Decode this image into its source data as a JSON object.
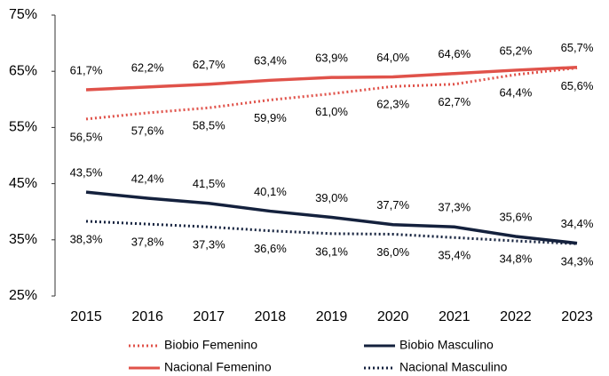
{
  "chart_data": {
    "type": "line",
    "categories": [
      "2015",
      "2016",
      "2017",
      "2018",
      "2019",
      "2020",
      "2021",
      "2022",
      "2023"
    ],
    "series": [
      {
        "name": "Biobio Femenino",
        "color": "#e0524a",
        "style": "dotted",
        "values": [
          56.5,
          57.6,
          58.5,
          59.9,
          61.0,
          62.3,
          62.7,
          64.4,
          65.6
        ],
        "value_labels": [
          "56,5%",
          "57,6%",
          "58,5%",
          "59,9%",
          "61,0%",
          "62,3%",
          "62,7%",
          "64,4%",
          "65,6%"
        ]
      },
      {
        "name": "Biobio Masculino",
        "color": "#14213d",
        "style": "solid",
        "values": [
          43.5,
          42.4,
          41.5,
          40.1,
          39.0,
          37.7,
          37.3,
          35.6,
          34.4
        ],
        "value_labels": [
          "43,5%",
          "42,4%",
          "41,5%",
          "40,1%",
          "39,0%",
          "37,7%",
          "37,3%",
          "35,6%",
          "34,4%"
        ]
      },
      {
        "name": "Nacional Femenino",
        "color": "#e0524a",
        "style": "solid",
        "values": [
          61.7,
          62.2,
          62.7,
          63.4,
          63.9,
          64.0,
          64.6,
          65.2,
          65.7
        ],
        "value_labels": [
          "61,7%",
          "62,2%",
          "62,7%",
          "63,4%",
          "63,9%",
          "64,0%",
          "64,6%",
          "65,2%",
          "65,7%"
        ]
      },
      {
        "name": "Nacional Masculino",
        "color": "#14213d",
        "style": "dotted",
        "values": [
          38.3,
          37.8,
          37.3,
          36.6,
          36.1,
          36.0,
          35.4,
          34.8,
          34.3
        ],
        "value_labels": [
          "38,3%",
          "37,8%",
          "37,3%",
          "36,6%",
          "36,1%",
          "36,0%",
          "35,4%",
          "34,8%",
          "34,3%"
        ]
      }
    ],
    "ylim": [
      25,
      75
    ],
    "yticks": [
      {
        "value": 25,
        "label": "25%"
      },
      {
        "value": 35,
        "label": "35%"
      },
      {
        "value": 45,
        "label": "45%"
      },
      {
        "value": 55,
        "label": "55%"
      },
      {
        "value": 65,
        "label": "65%"
      },
      {
        "value": 75,
        "label": "75%"
      }
    ],
    "grid": false
  }
}
